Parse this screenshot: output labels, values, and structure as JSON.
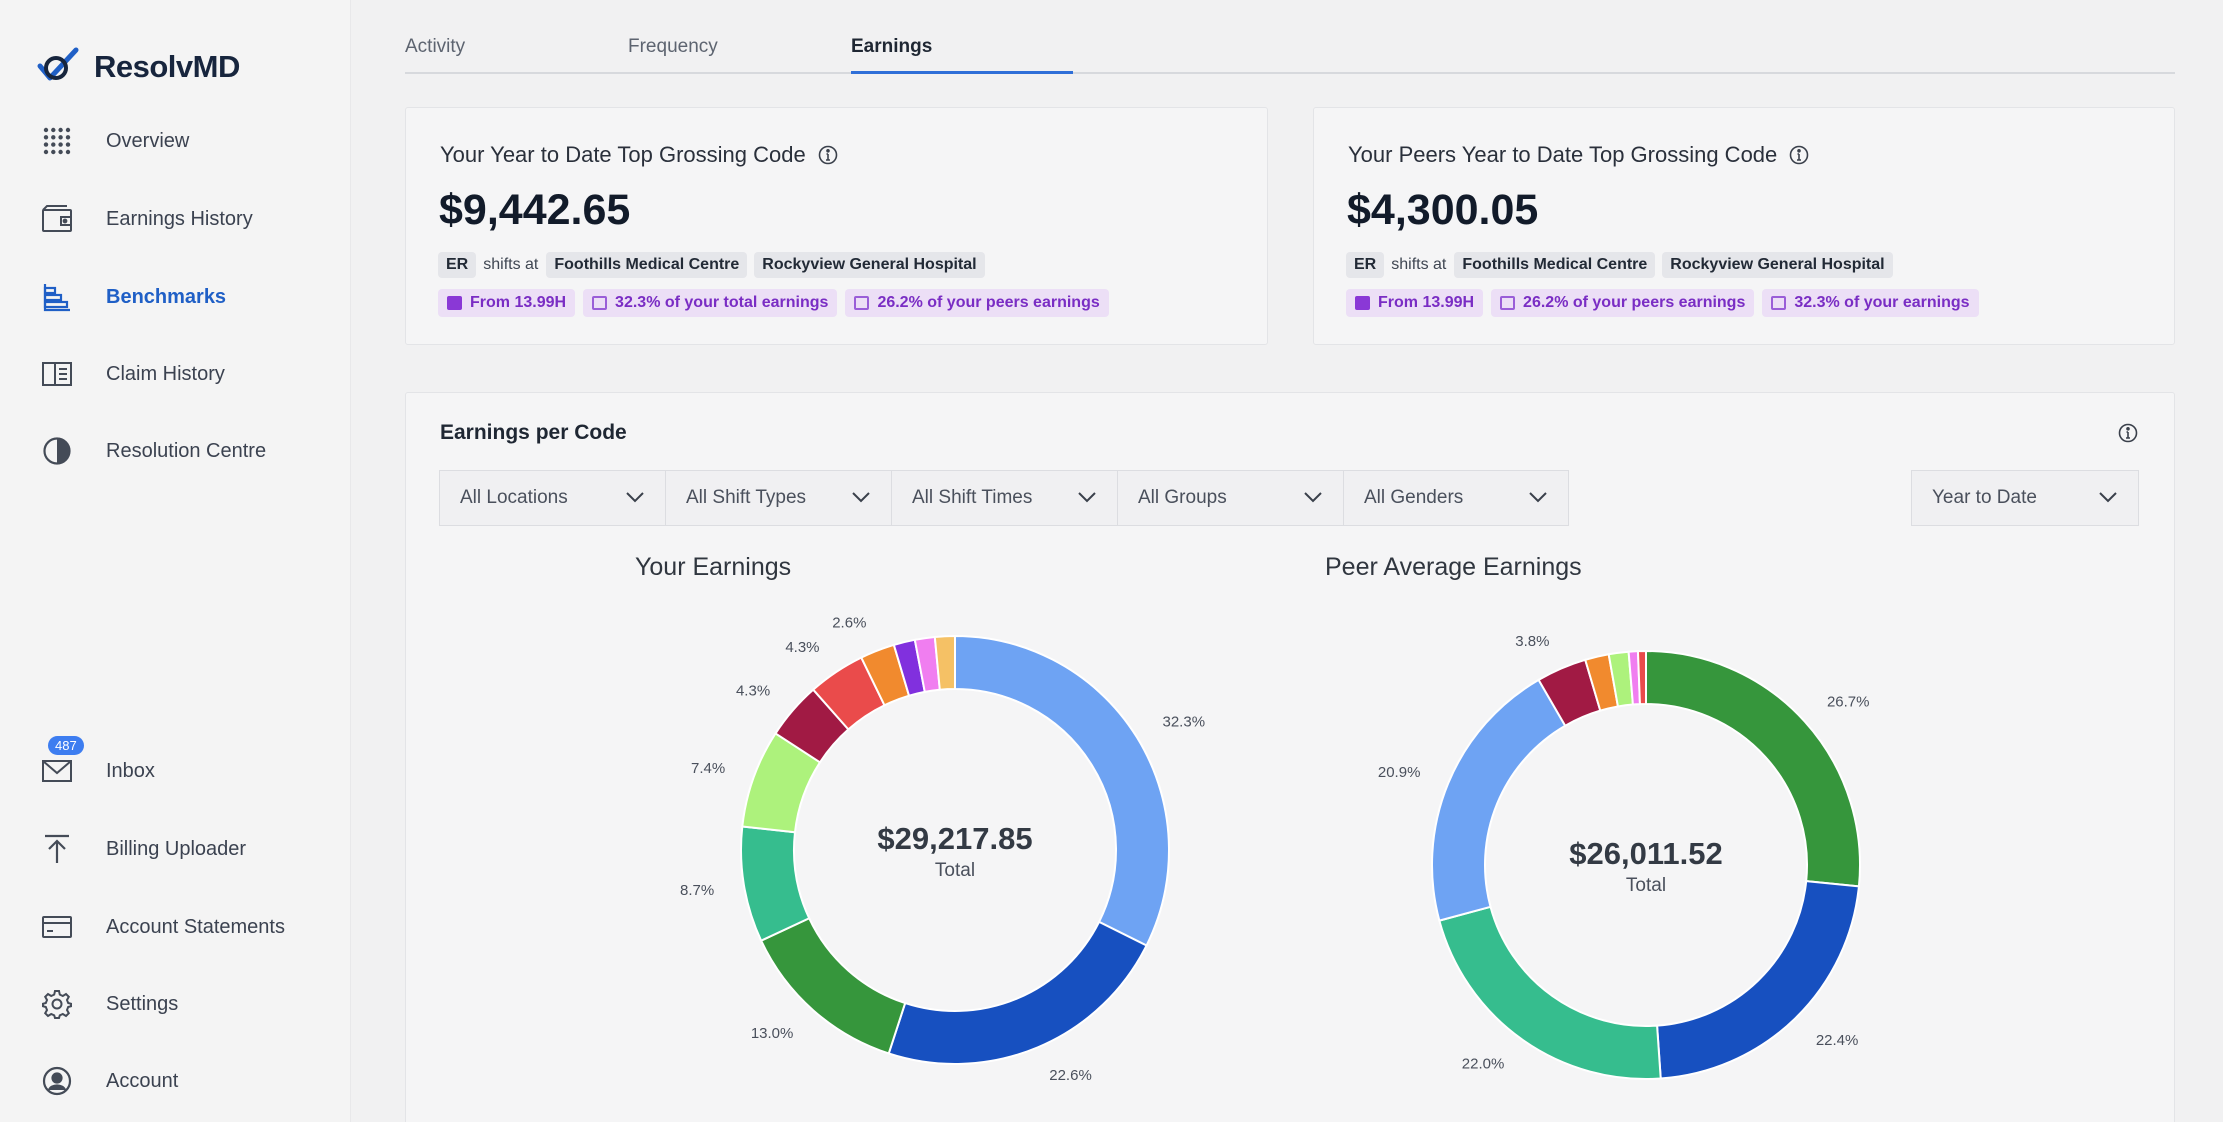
{
  "app": {
    "logo_text": "ResolvMD"
  },
  "sidebar": {
    "items": [
      {
        "label": "Overview",
        "icon": "grid-icon"
      },
      {
        "label": "Earnings History",
        "icon": "wallet-icon"
      },
      {
        "label": "Benchmarks",
        "icon": "bar-chart-icon",
        "active": true
      },
      {
        "label": "Claim History",
        "icon": "ledger-icon"
      },
      {
        "label": "Resolution Centre",
        "icon": "pie-icon"
      },
      {
        "label": "Inbox",
        "icon": "mail-icon",
        "badge": "487"
      },
      {
        "label": "Billing Uploader",
        "icon": "upload-icon"
      },
      {
        "label": "Account Statements",
        "icon": "card-icon"
      },
      {
        "label": "Settings",
        "icon": "gear-icon"
      },
      {
        "label": "Account",
        "icon": "user-icon"
      }
    ]
  },
  "tabs": [
    {
      "label": "Activity"
    },
    {
      "label": "Frequency"
    },
    {
      "label": "Earnings",
      "active": true
    }
  ],
  "cards": {
    "yours": {
      "title": "Your Year to Date Top Grossing Code",
      "value": "$9,442.65",
      "code": "ER",
      "shifts_text": "shifts at",
      "locations": [
        "Foothills Medical Centre",
        "Rockyview General Hospital"
      ],
      "stats": [
        "From 13.99H",
        "32.3% of your total earnings",
        "26.2% of your peers earnings"
      ]
    },
    "peers": {
      "title": "Your Peers Year to Date Top Grossing Code",
      "value": "$4,300.05",
      "code": "ER",
      "shifts_text": "shifts at",
      "locations": [
        "Foothills Medical Centre",
        "Rockyview General Hospital"
      ],
      "stats": [
        "From 13.99H",
        "26.2% of your peers earnings",
        "32.3% of your earnings"
      ]
    }
  },
  "earnings_section": {
    "title": "Earnings per Code",
    "filters": [
      "All Locations",
      "All Shift Types",
      "All Shift Times",
      "All Groups",
      "All Genders"
    ],
    "period": "Year to Date"
  },
  "colors": {
    "accent": "#1f5fc6",
    "purple_chip": "#7a2dc4",
    "badge": "#3d7df0"
  },
  "chart_data": [
    {
      "type": "pie",
      "title": "Your Earnings",
      "center_value": "$29,217.85",
      "center_label": "Total",
      "slices": [
        {
          "value": 32.3,
          "label": "32.3%",
          "color": "#6ea3f3"
        },
        {
          "value": 22.6,
          "label": "22.6%",
          "color": "#1750c0"
        },
        {
          "value": 13.0,
          "label": "13.0%",
          "color": "#36963c"
        },
        {
          "value": 8.7,
          "label": "8.7%",
          "color": "#36bd8e"
        },
        {
          "value": 7.4,
          "label": "7.4%",
          "color": "#adf27c"
        },
        {
          "value": 4.3,
          "label": "4.3%",
          "color": "#a11a44"
        },
        {
          "value": 4.3,
          "label": "4.3%",
          "color": "#ea4b4b"
        },
        {
          "value": 2.6,
          "label": "2.6%",
          "color": "#f18a2e"
        },
        {
          "value": 1.6,
          "label": "",
          "color": "#8130de"
        },
        {
          "value": 1.5,
          "label": "",
          "color": "#f07ef0"
        },
        {
          "value": 1.5,
          "label": "",
          "color": "#f5c165"
        }
      ]
    },
    {
      "type": "pie",
      "title": "Peer Average Earnings",
      "center_value": "$26,011.52",
      "center_label": "Total",
      "slices": [
        {
          "value": 26.7,
          "label": "26.7%",
          "color": "#36963c"
        },
        {
          "value": 22.4,
          "label": "22.4%",
          "color": "#1750c0"
        },
        {
          "value": 22.0,
          "label": "22.0%",
          "color": "#36bd8e"
        },
        {
          "value": 20.9,
          "label": "20.9%",
          "color": "#6ea3f3"
        },
        {
          "value": 3.8,
          "label": "3.8%",
          "color": "#a11a44"
        },
        {
          "value": 1.8,
          "label": "",
          "color": "#f18a2e"
        },
        {
          "value": 1.5,
          "label": "",
          "color": "#adf27c"
        },
        {
          "value": 0.7,
          "label": "",
          "color": "#f07ef0"
        },
        {
          "value": 0.6,
          "label": "",
          "color": "#ea4b4b"
        }
      ]
    }
  ]
}
